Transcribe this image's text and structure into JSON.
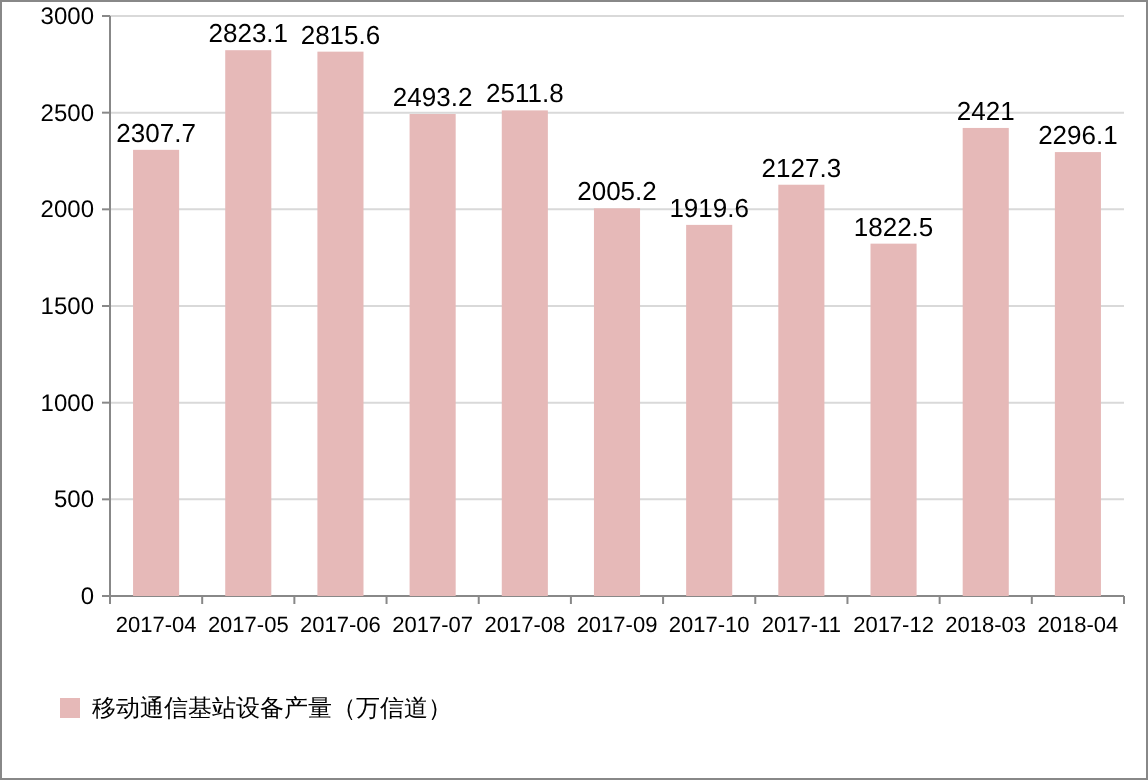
{
  "chart_data": {
    "type": "bar",
    "categories": [
      "2017-04",
      "2017-05",
      "2017-06",
      "2017-07",
      "2017-08",
      "2017-09",
      "2017-10",
      "2017-11",
      "2017-12",
      "2018-03",
      "2018-04"
    ],
    "series": [
      {
        "name": "移动通信基站设备产量（万信道）",
        "color": "#e6b9b8",
        "values": [
          2307.7,
          2823.1,
          2815.6,
          2493.2,
          2511.8,
          2005.2,
          1919.6,
          2127.3,
          1822.5,
          2421,
          2296.1
        ]
      }
    ],
    "ylim": [
      0,
      3000
    ],
    "yticks": [
      0,
      500,
      1000,
      1500,
      2000,
      2500,
      3000
    ],
    "grid": "y",
    "data_labels": true,
    "legend": "bottom left"
  }
}
